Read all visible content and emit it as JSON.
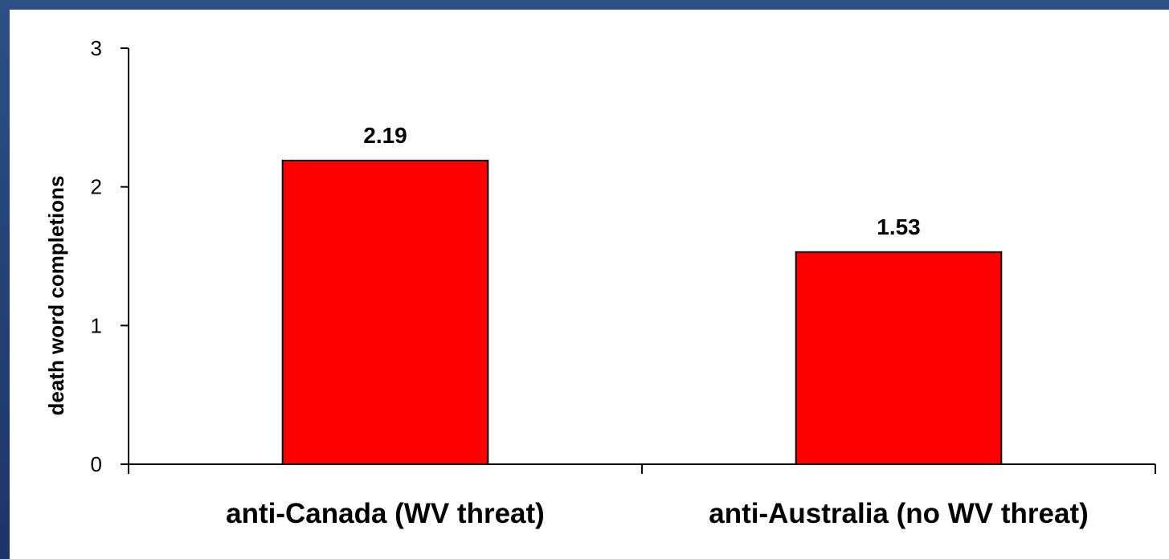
{
  "chart_data": {
    "type": "bar",
    "categories": [
      "anti-Canada (WV threat)",
      "anti-Australia (no WV threat)"
    ],
    "values": [
      2.19,
      1.53
    ],
    "data_labels": [
      "2.19",
      "1.53"
    ],
    "ylabel": "death word completions",
    "ylim": [
      0,
      3
    ],
    "yticks": [
      "0",
      "1",
      "2",
      "3"
    ],
    "grid": false,
    "legend": "none",
    "bar_color": "#ff0000",
    "frame_color": "#1f3864"
  }
}
